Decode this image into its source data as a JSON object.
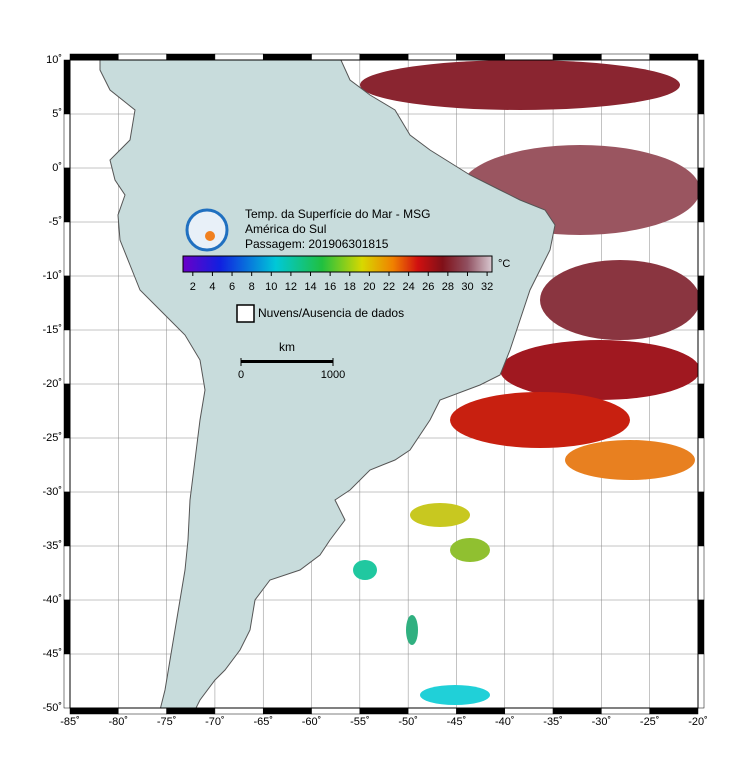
{
  "header": {
    "title": "Temp. da Superfície do Mar - MSG",
    "region": "América do Sul",
    "pass": "Passagem: 201906301815"
  },
  "colorbar": {
    "unit": "°C",
    "range": [
      1,
      32.5
    ],
    "ticks": [
      2,
      4,
      6,
      8,
      10,
      12,
      14,
      16,
      18,
      20,
      22,
      24,
      26,
      28,
      30,
      32
    ]
  },
  "legend": {
    "no_data": "Nuvens/Ausencia de dados"
  },
  "scale_bar": {
    "unit": "km",
    "ticks": [
      0,
      1000
    ]
  },
  "map": {
    "lonlim": [
      -85,
      -20
    ],
    "latlim": [
      -50,
      10
    ],
    "grid": true,
    "lon_ticks": [
      {
        "value": -85,
        "label": "-85˚"
      },
      {
        "value": -80,
        "label": "-80˚"
      },
      {
        "value": -75,
        "label": "-75˚"
      },
      {
        "value": -70,
        "label": "-70˚"
      },
      {
        "value": -65,
        "label": "-65˚"
      },
      {
        "value": -60,
        "label": "-60˚"
      },
      {
        "value": -55,
        "label": "-55˚"
      },
      {
        "value": -50,
        "label": "-50˚"
      },
      {
        "value": -45,
        "label": "-45˚"
      },
      {
        "value": -40,
        "label": "-40˚"
      },
      {
        "value": -35,
        "label": "-35˚"
      },
      {
        "value": -30,
        "label": "-30˚"
      },
      {
        "value": -25,
        "label": "-25˚"
      },
      {
        "value": -20,
        "label": "-20˚"
      }
    ],
    "lat_ticks": [
      {
        "value": 10,
        "label": "10˚"
      },
      {
        "value": 5,
        "label": "5˚"
      },
      {
        "value": 0,
        "label": "0˚"
      },
      {
        "value": -5,
        "label": "-5˚"
      },
      {
        "value": -10,
        "label": "-10˚"
      },
      {
        "value": -15,
        "label": "-15˚"
      },
      {
        "value": -20,
        "label": "-20˚"
      },
      {
        "value": -25,
        "label": "-25˚"
      },
      {
        "value": -30,
        "label": "-30˚"
      },
      {
        "value": -35,
        "label": "-35˚"
      },
      {
        "value": -40,
        "label": "-40˚"
      },
      {
        "value": -45,
        "label": "-45˚"
      },
      {
        "value": -50,
        "label": "-50˚"
      }
    ]
  }
}
